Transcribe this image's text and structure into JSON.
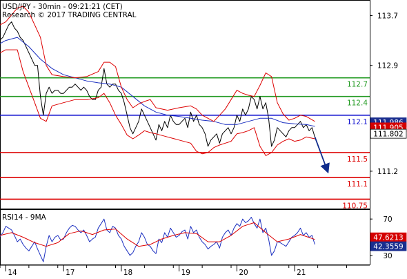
{
  "chart_data": [
    {
      "panel": "price",
      "type": "line",
      "title": "USD/JPY - 30min - 09:21:21 (CET)",
      "subtitle": "Research © 2017 TRADING CENTRAL",
      "ylim": [
        110.6,
        113.95
      ],
      "y_ticks": [
        "113.7",
        "112.9",
        "111.2"
      ],
      "y_tick_values": [
        113.7,
        112.9,
        111.2
      ],
      "x_ticks": [
        "14",
        "17",
        "18",
        "19",
        "20",
        "21"
      ],
      "x_tick_positions": [
        0,
        10,
        20,
        30,
        40,
        50
      ],
      "x_range": [
        -1,
        63
      ],
      "colors": {
        "price": "#000000",
        "bollinger": "#dd0000",
        "ma": "#1b2fc0",
        "resistance": "#229a22",
        "pivot": "#1515d0",
        "support": "#dd0000",
        "arrow": "#102c8c",
        "current_box": "#1a2e8f",
        "last_box": "#d40000"
      },
      "levels": [
        {
          "value": 112.7,
          "label": "112.7",
          "kind": "resistance"
        },
        {
          "value": 112.4,
          "label": "112.4",
          "kind": "resistance"
        },
        {
          "value": 112.1,
          "label": "112.1",
          "kind": "pivot"
        },
        {
          "value": 111.5,
          "label": "111.5",
          "kind": "support"
        },
        {
          "value": 111.1,
          "label": "111.1",
          "kind": "support"
        },
        {
          "value": 110.75,
          "label": "110.75",
          "kind": "support"
        }
      ],
      "price_boxes": [
        {
          "value": 111.986,
          "label": "111.986",
          "kind": "current"
        },
        {
          "value": 111.905,
          "label": "111.905",
          "kind": "last"
        },
        {
          "value": 111.802,
          "label": "111.802",
          "kind": "price"
        }
      ],
      "arrow": {
        "from": [
          53.5,
          111.75
        ],
        "to": [
          55.7,
          111.2
        ]
      },
      "series": [
        {
          "role": "price",
          "x": [
            -1.1,
            -0.5,
            0,
            0.5,
            1,
            1.5,
            2,
            2.5,
            3,
            3.5,
            4,
            4.5,
            5,
            5.5,
            6,
            6.5,
            7,
            7.5,
            8,
            8.5,
            9,
            9.5,
            10,
            10.5,
            11,
            11.5,
            12,
            12.5,
            13,
            13.5,
            14,
            14.5,
            15,
            15.5,
            16,
            16.5,
            17,
            17.5,
            18,
            18.5,
            19,
            19.5,
            20,
            20.5,
            21,
            21.5,
            22,
            22.5,
            23,
            23.5,
            24,
            24.5,
            25,
            25.5,
            26,
            26.5,
            27,
            27.5,
            28,
            28.5,
            29,
            29.5,
            30,
            30.5,
            31,
            31.5,
            32,
            32.5,
            33,
            33.5,
            34,
            34.5,
            35,
            35.5,
            36,
            36.5,
            37,
            37.5,
            38,
            38.5,
            39,
            39.5,
            40,
            40.5,
            41,
            41.5,
            42,
            42.5,
            43,
            43.5,
            44,
            44.5,
            45,
            45.5,
            46,
            46.5,
            47,
            47.5,
            48,
            48.5,
            49,
            49.5,
            50,
            50.5,
            51,
            51.5,
            52,
            52.5,
            53,
            53.5
          ],
          "values": [
            113.3,
            113.35,
            113.45,
            113.55,
            113.6,
            113.5,
            113.45,
            113.35,
            113.3,
            113.2,
            113.1,
            113.0,
            112.9,
            112.9,
            112.4,
            112.1,
            112.45,
            112.55,
            112.45,
            112.5,
            112.5,
            112.45,
            112.45,
            112.5,
            112.55,
            112.55,
            112.6,
            112.55,
            112.5,
            112.55,
            112.5,
            112.4,
            112.35,
            112.35,
            112.5,
            112.55,
            112.85,
            112.6,
            112.55,
            112.6,
            112.6,
            112.5,
            112.45,
            112.3,
            112.1,
            111.9,
            111.8,
            111.9,
            112.0,
            112.2,
            112.1,
            112.0,
            111.9,
            111.8,
            111.7,
            111.95,
            111.85,
            112.0,
            111.9,
            112.1,
            112.0,
            111.95,
            111.95,
            112.0,
            112.05,
            111.9,
            112.15,
            112.0,
            112.1,
            111.95,
            111.9,
            111.8,
            111.6,
            111.7,
            111.75,
            111.8,
            111.65,
            111.8,
            111.85,
            111.9,
            111.8,
            111.9,
            112.1,
            112.0,
            112.2,
            112.1,
            112.2,
            112.4,
            112.35,
            112.2,
            112.4,
            112.2,
            112.3,
            112.05,
            111.6,
            111.7,
            111.9,
            111.85,
            111.8,
            111.75,
            111.85,
            111.9,
            111.9,
            111.95,
            112.0,
            111.9,
            111.95,
            111.85,
            111.9,
            111.75
          ]
        },
        {
          "role": "ma",
          "x": [
            -1,
            0,
            2,
            4,
            6,
            8,
            10,
            12,
            14,
            16,
            18,
            20,
            22,
            24,
            26,
            28,
            30,
            32,
            34,
            36,
            38,
            40,
            42,
            44,
            46,
            48,
            50,
            52,
            53.5
          ],
          "values": [
            113.25,
            113.3,
            113.35,
            113.2,
            113.0,
            112.85,
            112.75,
            112.7,
            112.65,
            112.62,
            112.6,
            112.55,
            112.4,
            112.25,
            112.15,
            112.1,
            112.08,
            112.05,
            112.02,
            112.0,
            111.95,
            111.95,
            112.0,
            112.05,
            112.05,
            111.98,
            111.96,
            111.95,
            111.92
          ]
        },
        {
          "role": "bollinger_upper",
          "x": [
            -1,
            0,
            2,
            3,
            4,
            5,
            6,
            7,
            8,
            10,
            12,
            14,
            16,
            17,
            18,
            19,
            20,
            21,
            22,
            23,
            24,
            25,
            26,
            28,
            30,
            32,
            33,
            34,
            35,
            36,
            37,
            38,
            39,
            40,
            41,
            42,
            43,
            44,
            45,
            46,
            47,
            48,
            49,
            50,
            51,
            52,
            53.5
          ],
          "values": [
            113.55,
            113.6,
            113.82,
            113.85,
            113.75,
            113.55,
            113.35,
            112.9,
            112.75,
            112.72,
            112.7,
            112.72,
            112.8,
            112.95,
            112.95,
            112.88,
            112.55,
            112.35,
            112.22,
            112.28,
            112.32,
            112.35,
            112.22,
            112.18,
            112.22,
            112.25,
            112.2,
            112.1,
            112.05,
            112.0,
            112.1,
            112.2,
            112.35,
            112.5,
            112.45,
            112.42,
            112.4,
            112.58,
            112.78,
            112.72,
            112.3,
            112.12,
            112.02,
            112.05,
            112.1,
            112.08,
            112.0
          ]
        },
        {
          "role": "bollinger_lower",
          "x": [
            -1,
            0,
            2,
            3,
            4,
            5,
            6,
            7,
            8,
            10,
            12,
            14,
            16,
            17,
            18,
            19,
            20,
            21,
            22,
            23,
            24,
            25,
            26,
            28,
            30,
            32,
            33,
            34,
            35,
            36,
            37,
            38,
            39,
            40,
            41,
            42,
            43,
            44,
            45,
            46,
            47,
            48,
            49,
            50,
            51,
            52,
            53.5
          ],
          "values": [
            113.1,
            113.15,
            113.15,
            112.8,
            112.55,
            112.3,
            112.05,
            112.0,
            112.25,
            112.3,
            112.35,
            112.35,
            112.38,
            112.45,
            112.3,
            112.1,
            111.95,
            111.78,
            111.72,
            111.78,
            111.85,
            111.82,
            111.8,
            111.75,
            111.7,
            111.65,
            111.52,
            111.48,
            111.5,
            111.58,
            111.62,
            111.65,
            111.68,
            111.8,
            111.82,
            111.85,
            111.9,
            111.6,
            111.45,
            111.5,
            111.62,
            111.68,
            111.72,
            111.68,
            111.7,
            111.75,
            111.72
          ]
        }
      ]
    },
    {
      "panel": "rsi",
      "type": "line",
      "title": "RSI14 - 9MA",
      "ylim": [
        20,
        80
      ],
      "y_ticks": [
        "70",
        "30"
      ],
      "y_tick_values": [
        70,
        30
      ],
      "boxes": [
        {
          "value": 47.6213,
          "label": "47.6213",
          "kind": "ma"
        },
        {
          "value": 42.3559,
          "label": "42.3559",
          "kind": "rsi"
        }
      ],
      "series": [
        {
          "role": "rsi",
          "x": [
            -1.1,
            -0.5,
            0,
            0.5,
            1,
            1.5,
            2,
            2.5,
            3,
            3.5,
            4,
            4.5,
            5,
            5.5,
            6,
            6.5,
            7,
            7.5,
            8,
            8.5,
            9,
            9.5,
            10,
            10.5,
            11,
            11.5,
            12,
            12.5,
            13,
            13.5,
            14,
            14.5,
            15,
            15.5,
            16,
            16.5,
            17,
            17.5,
            18,
            18.5,
            19,
            19.5,
            20,
            20.5,
            21,
            21.5,
            22,
            22.5,
            23,
            23.5,
            24,
            24.5,
            25,
            25.5,
            26,
            26.5,
            27,
            27.5,
            28,
            28.5,
            29,
            29.5,
            30,
            30.5,
            31,
            31.5,
            32,
            32.5,
            33,
            33.5,
            34,
            34.5,
            35,
            35.5,
            36,
            36.5,
            37,
            37.5,
            38,
            38.5,
            39,
            39.5,
            40,
            40.5,
            41,
            41.5,
            42,
            42.5,
            43,
            43.5,
            44,
            44.5,
            45,
            45.5,
            46,
            46.5,
            47,
            47.5,
            48,
            48.5,
            49,
            49.5,
            50,
            50.5,
            51,
            51.5,
            52,
            52.5,
            53,
            53.5
          ],
          "values": [
            50,
            55,
            62,
            60,
            58,
            52,
            45,
            48,
            42,
            38,
            35,
            40,
            45,
            37,
            30,
            23,
            40,
            52,
            45,
            50,
            52,
            47,
            48,
            55,
            60,
            63,
            62,
            58,
            55,
            58,
            52,
            45,
            48,
            50,
            60,
            65,
            70,
            58,
            55,
            62,
            60,
            52,
            48,
            40,
            35,
            30,
            33,
            40,
            45,
            55,
            50,
            42,
            40,
            35,
            32,
            48,
            44,
            55,
            50,
            60,
            55,
            50,
            52,
            56,
            58,
            48,
            62,
            55,
            58,
            50,
            45,
            42,
            37,
            40,
            42,
            45,
            38,
            50,
            55,
            58,
            52,
            60,
            65,
            62,
            70,
            66,
            68,
            72,
            65,
            60,
            70,
            55,
            60,
            48,
            30,
            35,
            45,
            44,
            42,
            40,
            45,
            50,
            52,
            55,
            60,
            52,
            55,
            50,
            52,
            42
          ]
        },
        {
          "role": "ma",
          "x": [
            -1,
            1,
            3,
            5,
            7,
            9,
            11,
            13,
            15,
            17,
            19,
            21,
            23,
            25,
            27,
            29,
            31,
            33,
            35,
            37,
            39,
            41,
            43,
            45,
            47,
            49,
            51,
            53.5
          ],
          "values": [
            52,
            55,
            50,
            44,
            40,
            44,
            54,
            57,
            53,
            58,
            59,
            48,
            40,
            42,
            48,
            52,
            55,
            54,
            45,
            45,
            52,
            62,
            66,
            55,
            45,
            48,
            53,
            47.6
          ]
        }
      ]
    }
  ]
}
